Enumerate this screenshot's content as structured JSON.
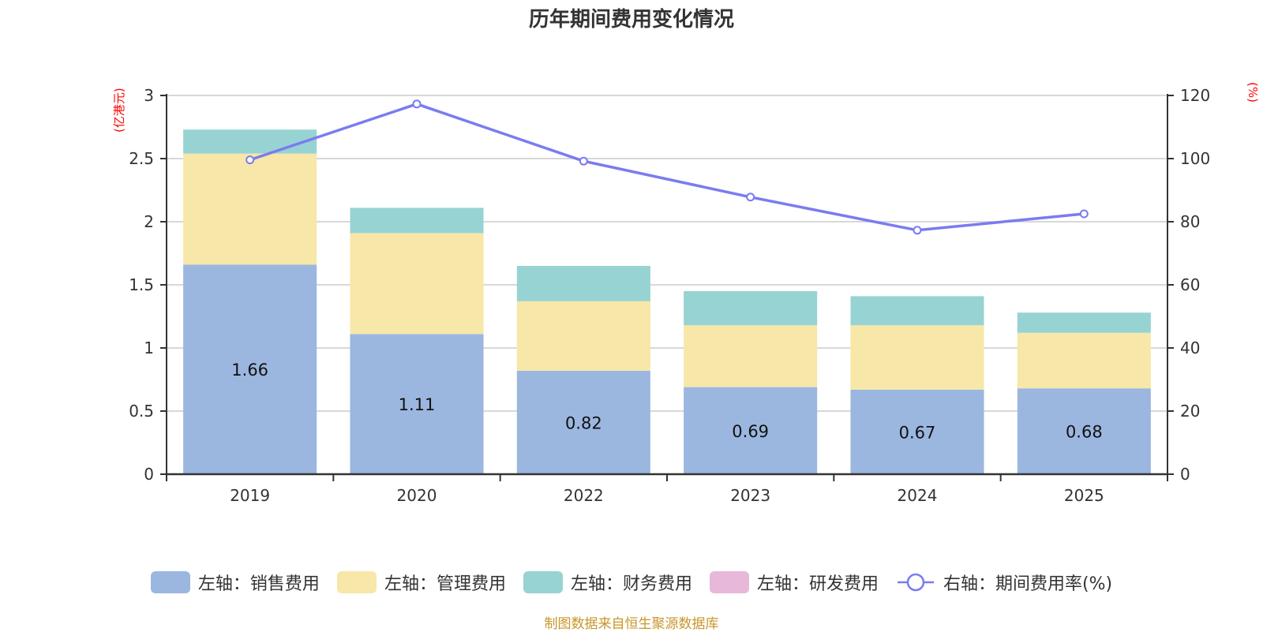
{
  "chart_data": {
    "type": "bar",
    "title": "历年期间费用变化情况",
    "categories": [
      "2019",
      "2020",
      "2022",
      "2023",
      "2024",
      "2025"
    ],
    "left_axis": {
      "label": "(亿港元)",
      "ylim": [
        0,
        3
      ],
      "ticks": [
        "0",
        "0.5",
        "1",
        "1.5",
        "2",
        "2.5",
        "3"
      ],
      "tick_values": [
        0,
        0.5,
        1,
        1.5,
        2,
        2.5,
        3
      ]
    },
    "right_axis": {
      "label": "(%)",
      "ylim": [
        0,
        120
      ],
      "ticks": [
        "0",
        "20",
        "40",
        "60",
        "80",
        "100",
        "120"
      ],
      "tick_values": [
        0,
        20,
        40,
        60,
        80,
        100,
        120
      ]
    },
    "grid": true,
    "stacked": true,
    "legend_position": "bottom",
    "series": [
      {
        "name": "左轴：销售费用",
        "axis": "left",
        "type": "bar",
        "color": "#9bb7e0",
        "values": [
          1.66,
          1.11,
          0.82,
          0.69,
          0.67,
          0.68
        ],
        "labels": [
          "1.66",
          "1.11",
          "0.82",
          "0.69",
          "0.67",
          "0.68"
        ]
      },
      {
        "name": "左轴：管理费用",
        "axis": "left",
        "type": "bar",
        "color": "#f7e7a8",
        "values": [
          0.88,
          0.8,
          0.55,
          0.49,
          0.51,
          0.44
        ]
      },
      {
        "name": "左轴：财务费用",
        "axis": "left",
        "type": "bar",
        "color": "#97d3d3",
        "values": [
          0.19,
          0.2,
          0.28,
          0.27,
          0.23,
          0.16
        ]
      },
      {
        "name": "左轴：研发费用",
        "axis": "left",
        "type": "bar",
        "color": "#e7b8d9",
        "values": [
          0,
          0,
          0,
          0,
          0,
          0
        ]
      },
      {
        "name": "右轴：期间费用率(%)",
        "axis": "right",
        "type": "line",
        "color": "#7b7bf0",
        "values": [
          99.6,
          117.3,
          99.2,
          87.8,
          77.3,
          82.5
        ]
      }
    ]
  },
  "footer": "制图数据来自恒生聚源数据库"
}
